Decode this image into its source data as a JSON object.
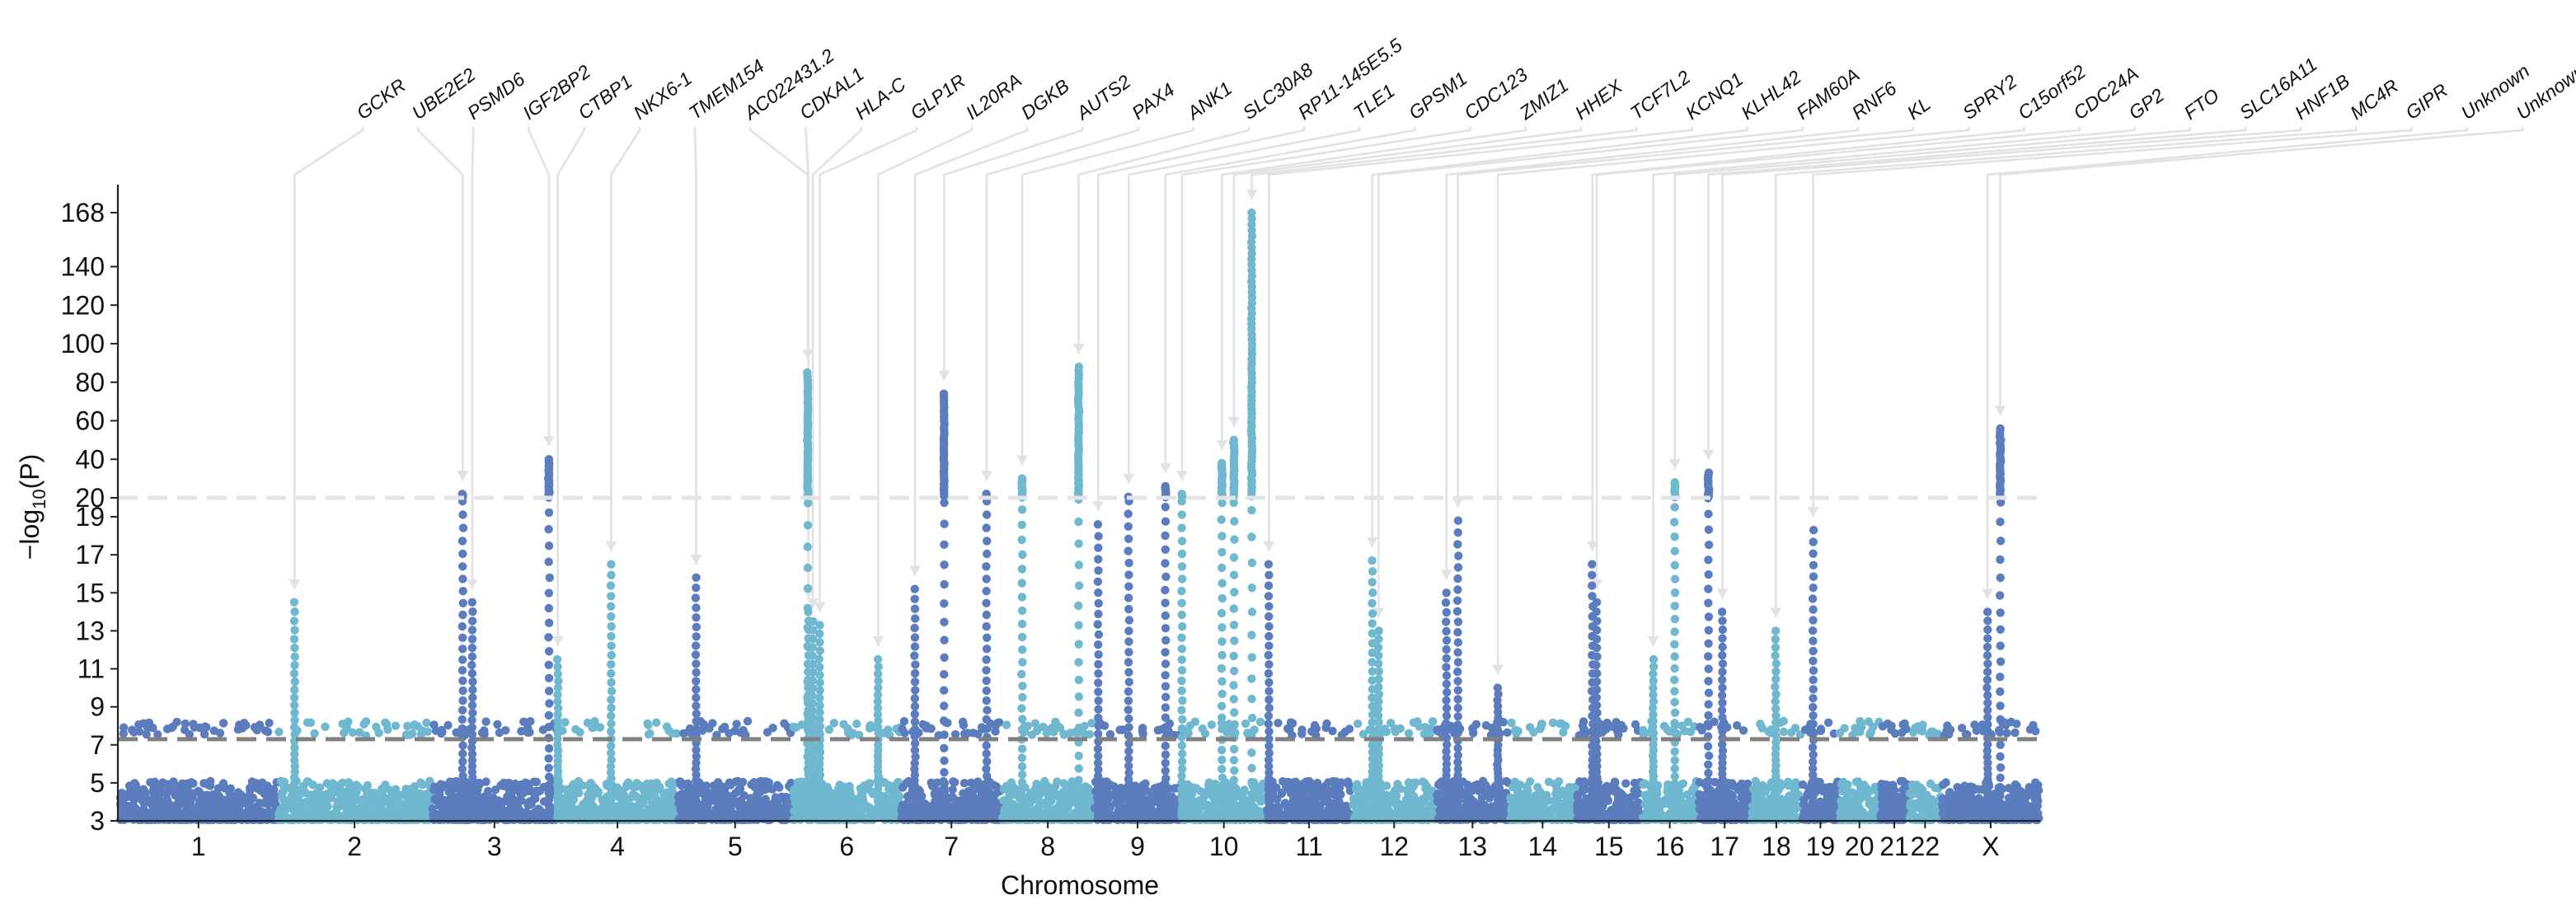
{
  "chart_data": {
    "type": "scatter",
    "subtype": "manhattan",
    "xlabel": "Chromosome",
    "ylabel_main": "−log",
    "ylabel_sub": "10",
    "ylabel_tail": "(P)",
    "ylim_lower": [
      3,
      20
    ],
    "ylim_upper": [
      20,
      180
    ],
    "y_ticks_lower": [
      3,
      5,
      7,
      9,
      11,
      13,
      15,
      17,
      19
    ],
    "y_ticks_upper": [
      20,
      40,
      60,
      80,
      100,
      120,
      140,
      168
    ],
    "axis_break_at": 20,
    "genome_wide_threshold": 7.3,
    "colors": {
      "dark": "#5b7dbd",
      "light": "#6fb8cf",
      "threshold": "#808080",
      "break_line": "#e4e4e4",
      "leader": "#e2e2e2",
      "axis": "#222222"
    },
    "chromosomes": [
      {
        "label": "1",
        "start": 0,
        "end": 249
      },
      {
        "label": "2",
        "start": 249,
        "end": 492
      },
      {
        "label": "3",
        "start": 492,
        "end": 690
      },
      {
        "label": "4",
        "start": 690,
        "end": 880
      },
      {
        "label": "5",
        "start": 880,
        "end": 1061
      },
      {
        "label": "6",
        "start": 1061,
        "end": 1232
      },
      {
        "label": "7",
        "start": 1232,
        "end": 1391
      },
      {
        "label": "8",
        "start": 1391,
        "end": 1536
      },
      {
        "label": "9",
        "start": 1536,
        "end": 1674
      },
      {
        "label": "10",
        "start": 1674,
        "end": 1808
      },
      {
        "label": "11",
        "start": 1808,
        "end": 1943
      },
      {
        "label": "12",
        "start": 1943,
        "end": 2076
      },
      {
        "label": "13",
        "start": 2076,
        "end": 2190
      },
      {
        "label": "14",
        "start": 2190,
        "end": 2297
      },
      {
        "label": "15",
        "start": 2297,
        "end": 2399
      },
      {
        "label": "16",
        "start": 2399,
        "end": 2489
      },
      {
        "label": "17",
        "start": 2489,
        "end": 2572
      },
      {
        "label": "18",
        "start": 2572,
        "end": 2652
      },
      {
        "label": "19",
        "start": 2652,
        "end": 2711
      },
      {
        "label": "20",
        "start": 2711,
        "end": 2775
      },
      {
        "label": "21",
        "start": 2775,
        "end": 2821
      },
      {
        "label": "22",
        "start": 2821,
        "end": 2872
      },
      {
        "label": "X",
        "start": 2872,
        "end": 3028
      }
    ],
    "peaks": [
      {
        "gene": "GCKR",
        "pos": 276,
        "p": 14.5
      },
      {
        "gene": "UBE2E2",
        "pos": 541,
        "p": 22
      },
      {
        "gene": "PSMD6",
        "pos": 556,
        "p": 14.5
      },
      {
        "gene": "IGF2BP2",
        "pos": 677,
        "p": 40
      },
      {
        "gene": "CTBP1",
        "pos": 691,
        "p": 11.5
      },
      {
        "gene": "NKX6-1",
        "pos": 775,
        "p": 16.5
      },
      {
        "gene": "TMEM154",
        "pos": 909,
        "p": 15.8
      },
      {
        "gene": "AC022431.2",
        "pos": 1085,
        "p": 85
      },
      {
        "gene": "CDKAL1",
        "pos": 1086,
        "p": 14
      },
      {
        "gene": "HLA-C",
        "pos": 1093,
        "p": 13.5
      },
      {
        "gene": "GLP1R",
        "pos": 1104,
        "p": 13.3
      },
      {
        "gene": "IL20RA",
        "pos": 1196,
        "p": 11.5
      },
      {
        "gene": "DGKB",
        "pos": 1254,
        "p": 15.2
      },
      {
        "gene": "AUTS2",
        "pos": 1300,
        "p": 74
      },
      {
        "gene": "PAX4",
        "pos": 1367,
        "p": 22
      },
      {
        "gene": "ANK1",
        "pos": 1423,
        "p": 30
      },
      {
        "gene": "SLC30A8",
        "pos": 1512,
        "p": 88
      },
      {
        "gene": "RP11-145E5.5",
        "pos": 1543,
        "p": 18.6
      },
      {
        "gene": "TLE1",
        "pos": 1591,
        "p": 20.5
      },
      {
        "gene": "GPSM1",
        "pos": 1649,
        "p": 26
      },
      {
        "gene": "CDC123",
        "pos": 1675,
        "p": 22
      },
      {
        "gene": "ZMIZ1",
        "pos": 1738,
        "p": 38
      },
      {
        "gene": "HHEX",
        "pos": 1757,
        "p": 50
      },
      {
        "gene": "TCF7L2",
        "pos": 1785,
        "p": 168
      },
      {
        "gene": "KCNQ1",
        "pos": 1812,
        "p": 16.5
      },
      {
        "gene": "KLHL42",
        "pos": 1975,
        "p": 16.7
      },
      {
        "gene": "FAM60A",
        "pos": 1985,
        "p": 13
      },
      {
        "gene": "RNF6",
        "pos": 2092,
        "p": 15
      },
      {
        "gene": "KL",
        "pos": 2110,
        "p": 18.8
      },
      {
        "gene": "SPRY2",
        "pos": 2173,
        "p": 10
      },
      {
        "gene": "C15orf52",
        "pos": 2322,
        "p": 16.5
      },
      {
        "gene": "CDC24A",
        "pos": 2329,
        "p": 14.5
      },
      {
        "gene": "GP2",
        "pos": 2418,
        "p": 11.5
      },
      {
        "gene": "FTO",
        "pos": 2452,
        "p": 28
      },
      {
        "gene": "SLC16A11",
        "pos": 2505,
        "p": 33
      },
      {
        "gene": "HNF1B",
        "pos": 2527,
        "p": 14
      },
      {
        "gene": "MC4R",
        "pos": 2611,
        "p": 13
      },
      {
        "gene": "GIPR",
        "pos": 2670,
        "p": 18.3
      },
      {
        "gene": "Unknown",
        "pos": 2945,
        "p": 14
      },
      {
        "gene": "Unknown",
        "pos": 2965,
        "p": 56
      }
    ]
  }
}
